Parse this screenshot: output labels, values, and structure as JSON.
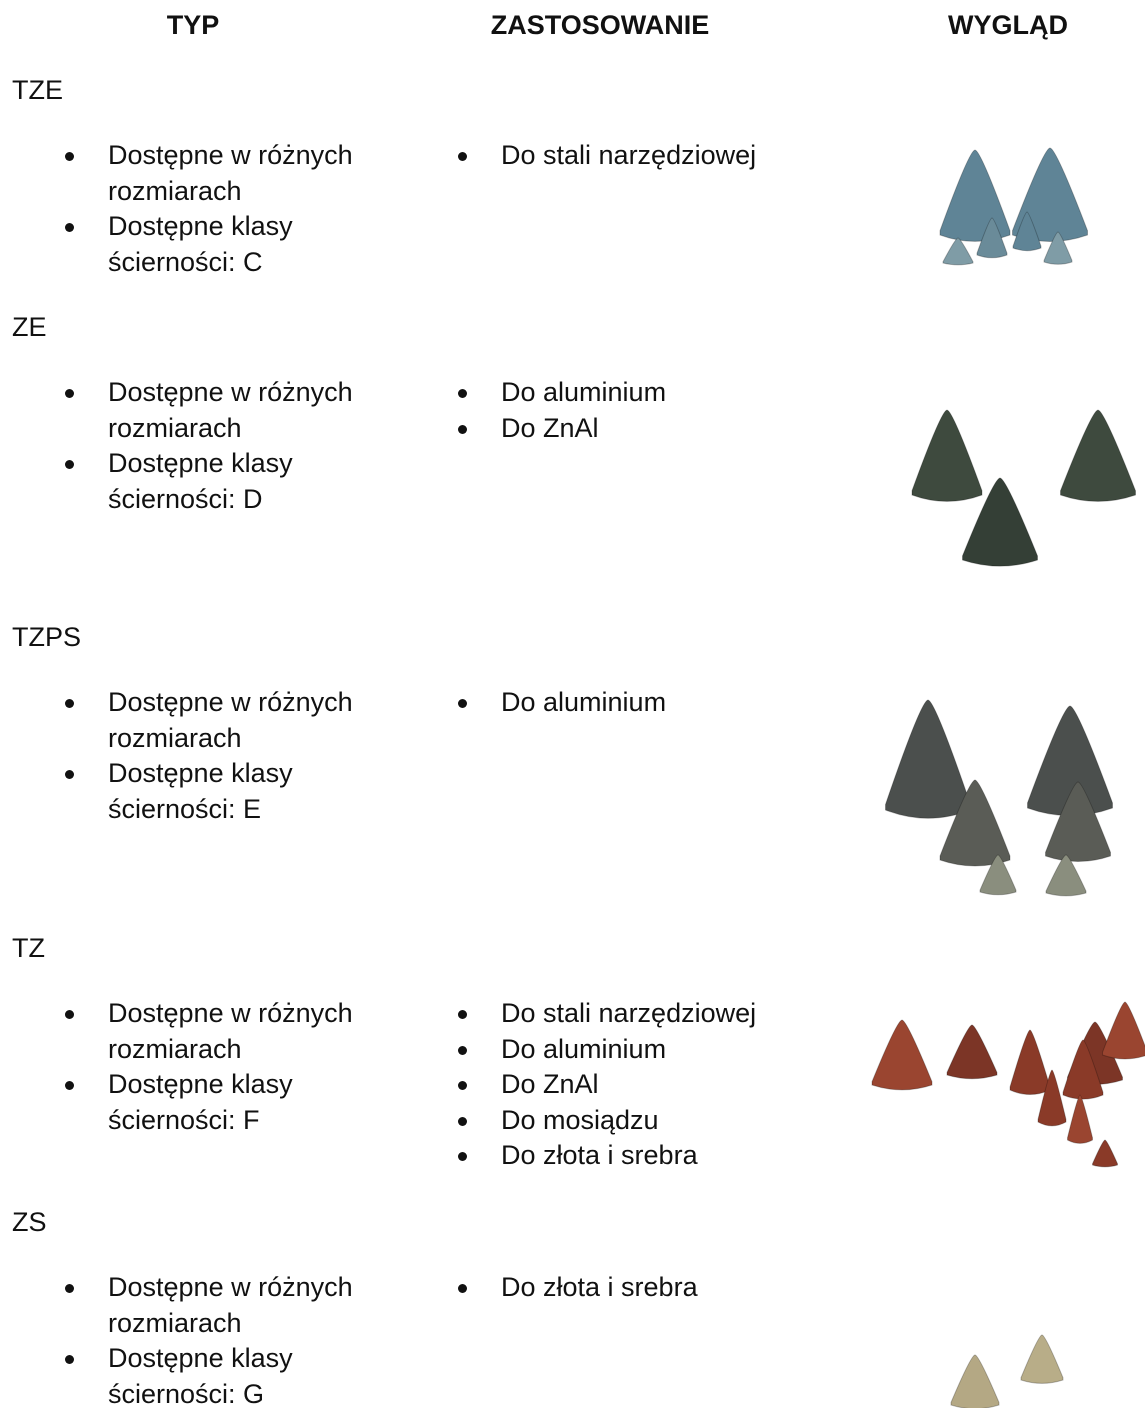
{
  "header": {
    "columns": [
      "TYP",
      "ZASTOSOWANIE",
      "WYGLĄD"
    ]
  },
  "rows": [
    {
      "type": "TZE",
      "features": [
        "Dostępne w różnych rozmiarach",
        "Dostępne klasy ścierności: C"
      ],
      "applications": [
        "Do stali narzędziowej"
      ]
    },
    {
      "type": "ZE",
      "features": [
        "Dostępne w różnych rozmiarach",
        "Dostępne klasy ścierności: D"
      ],
      "applications": [
        "Do aluminium",
        "Do ZnAl"
      ]
    },
    {
      "type": "TZPS",
      "features": [
        "Dostępne w różnych rozmiarach",
        "Dostępne klasy ścierności: E"
      ],
      "applications": [
        "Do aluminium"
      ]
    },
    {
      "type": "TZ",
      "features": [
        "Dostępne w różnych rozmiarach",
        "Dostępne klasy ścierności: F"
      ],
      "applications": [
        "Do stali narzędziowej",
        "Do aluminium",
        "Do ZnAl",
        "Do mosiądzu",
        "Do złota i srebra"
      ]
    },
    {
      "type": "ZS",
      "features": [
        "Dostępne w różnych rozmiarach",
        "Dostępne klasy ścierności: G"
      ],
      "applications": [
        "Do złota i srebra"
      ]
    }
  ]
}
